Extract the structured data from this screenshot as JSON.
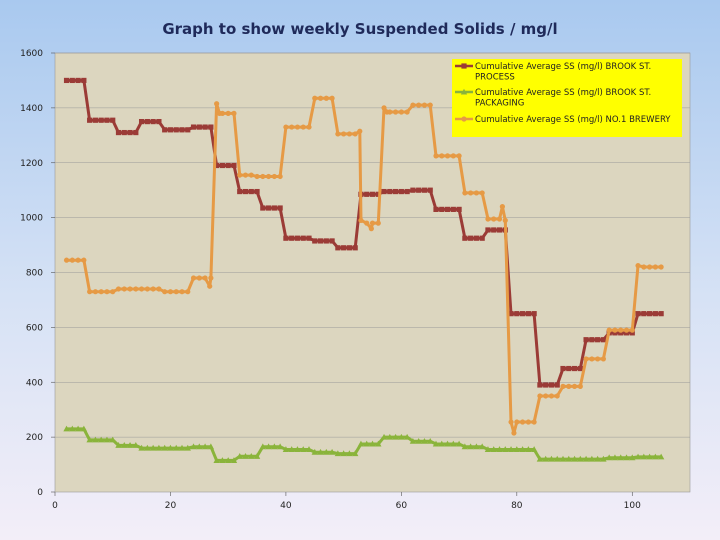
{
  "chart_data": {
    "type": "line",
    "title": "Graph to show weekly Suspended Solids / mg/l",
    "xlabel": "",
    "ylabel": "",
    "xlim": [
      0,
      110
    ],
    "ylim": [
      0,
      1600
    ],
    "xticks": [
      0,
      20,
      40,
      60,
      80,
      100
    ],
    "yticks": [
      0,
      200,
      400,
      600,
      800,
      1000,
      1200,
      1400,
      1600
    ],
    "grid": "horizontal",
    "legend_position": "top-right",
    "series": [
      {
        "name": "Cumulative Average SS (mg/l) BROOK ST. PROCESS",
        "color": "#9b3b36",
        "marker": "square",
        "points": [
          [
            2,
            1500
          ],
          [
            3,
            1500
          ],
          [
            4,
            1500
          ],
          [
            5,
            1500
          ],
          [
            6,
            1355
          ],
          [
            7,
            1355
          ],
          [
            8,
            1355
          ],
          [
            9,
            1355
          ],
          [
            10,
            1355
          ],
          [
            11,
            1310
          ],
          [
            12,
            1310
          ],
          [
            13,
            1310
          ],
          [
            14,
            1310
          ],
          [
            15,
            1350
          ],
          [
            16,
            1350
          ],
          [
            17,
            1350
          ],
          [
            18,
            1350
          ],
          [
            19,
            1320
          ],
          [
            20,
            1320
          ],
          [
            21,
            1320
          ],
          [
            22,
            1320
          ],
          [
            23,
            1320
          ],
          [
            24,
            1330
          ],
          [
            25,
            1330
          ],
          [
            26,
            1330
          ],
          [
            27,
            1330
          ],
          [
            28,
            1190
          ],
          [
            29,
            1190
          ],
          [
            30,
            1190
          ],
          [
            31,
            1190
          ],
          [
            32,
            1095
          ],
          [
            33,
            1095
          ],
          [
            34,
            1095
          ],
          [
            35,
            1095
          ],
          [
            36,
            1035
          ],
          [
            37,
            1035
          ],
          [
            38,
            1035
          ],
          [
            39,
            1035
          ],
          [
            40,
            925
          ],
          [
            41,
            925
          ],
          [
            42,
            925
          ],
          [
            43,
            925
          ],
          [
            44,
            925
          ],
          [
            45,
            915
          ],
          [
            46,
            915
          ],
          [
            47,
            915
          ],
          [
            48,
            915
          ],
          [
            49,
            890
          ],
          [
            50,
            890
          ],
          [
            51,
            890
          ],
          [
            52,
            890
          ],
          [
            53,
            1085
          ],
          [
            54,
            1085
          ],
          [
            55,
            1085
          ],
          [
            56,
            1085
          ],
          [
            57,
            1095
          ],
          [
            58,
            1095
          ],
          [
            59,
            1095
          ],
          [
            60,
            1095
          ],
          [
            61,
            1095
          ],
          [
            62,
            1100
          ],
          [
            63,
            1100
          ],
          [
            64,
            1100
          ],
          [
            65,
            1100
          ],
          [
            66,
            1030
          ],
          [
            67,
            1030
          ],
          [
            68,
            1030
          ],
          [
            69,
            1030
          ],
          [
            70,
            1030
          ],
          [
            71,
            925
          ],
          [
            72,
            925
          ],
          [
            73,
            925
          ],
          [
            74,
            925
          ],
          [
            75,
            955
          ],
          [
            76,
            955
          ],
          [
            77,
            955
          ],
          [
            78,
            955
          ],
          [
            79,
            650
          ],
          [
            80,
            650
          ],
          [
            81,
            650
          ],
          [
            82,
            650
          ],
          [
            83,
            650
          ],
          [
            84,
            390
          ],
          [
            85,
            390
          ],
          [
            86,
            390
          ],
          [
            87,
            390
          ],
          [
            88,
            450
          ],
          [
            89,
            450
          ],
          [
            90,
            450
          ],
          [
            91,
            450
          ],
          [
            92,
            555
          ],
          [
            93,
            555
          ],
          [
            94,
            555
          ],
          [
            95,
            555
          ],
          [
            96,
            580
          ],
          [
            97,
            580
          ],
          [
            98,
            580
          ],
          [
            99,
            580
          ],
          [
            100,
            580
          ],
          [
            101,
            650
          ],
          [
            102,
            650
          ],
          [
            103,
            650
          ],
          [
            104,
            650
          ],
          [
            105,
            650
          ]
        ]
      },
      {
        "name": "Cumulative Average SS (mg/l) BROOK ST. PACKAGING",
        "color": "#8ab43b",
        "marker": "triangle",
        "points": [
          [
            2,
            230
          ],
          [
            3,
            230
          ],
          [
            4,
            230
          ],
          [
            5,
            230
          ],
          [
            6,
            190
          ],
          [
            7,
            190
          ],
          [
            8,
            190
          ],
          [
            9,
            190
          ],
          [
            10,
            190
          ],
          [
            11,
            170
          ],
          [
            12,
            170
          ],
          [
            13,
            170
          ],
          [
            14,
            170
          ],
          [
            15,
            160
          ],
          [
            16,
            160
          ],
          [
            17,
            160
          ],
          [
            18,
            160
          ],
          [
            19,
            160
          ],
          [
            20,
            160
          ],
          [
            21,
            160
          ],
          [
            22,
            160
          ],
          [
            23,
            160
          ],
          [
            24,
            165
          ],
          [
            25,
            165
          ],
          [
            26,
            165
          ],
          [
            27,
            165
          ],
          [
            28,
            115
          ],
          [
            29,
            115
          ],
          [
            30,
            115
          ],
          [
            31,
            115
          ],
          [
            32,
            130
          ],
          [
            33,
            130
          ],
          [
            34,
            130
          ],
          [
            35,
            130
          ],
          [
            36,
            165
          ],
          [
            37,
            165
          ],
          [
            38,
            165
          ],
          [
            39,
            165
          ],
          [
            40,
            155
          ],
          [
            41,
            155
          ],
          [
            42,
            155
          ],
          [
            43,
            155
          ],
          [
            44,
            155
          ],
          [
            45,
            145
          ],
          [
            46,
            145
          ],
          [
            47,
            145
          ],
          [
            48,
            145
          ],
          [
            49,
            140
          ],
          [
            50,
            140
          ],
          [
            51,
            140
          ],
          [
            52,
            140
          ],
          [
            53,
            175
          ],
          [
            54,
            175
          ],
          [
            55,
            175
          ],
          [
            56,
            175
          ],
          [
            57,
            200
          ],
          [
            58,
            200
          ],
          [
            59,
            200
          ],
          [
            60,
            200
          ],
          [
            61,
            200
          ],
          [
            62,
            185
          ],
          [
            63,
            185
          ],
          [
            64,
            185
          ],
          [
            65,
            185
          ],
          [
            66,
            175
          ],
          [
            67,
            175
          ],
          [
            68,
            175
          ],
          [
            69,
            175
          ],
          [
            70,
            175
          ],
          [
            71,
            165
          ],
          [
            72,
            165
          ],
          [
            73,
            165
          ],
          [
            74,
            165
          ],
          [
            75,
            155
          ],
          [
            76,
            155
          ],
          [
            77,
            155
          ],
          [
            78,
            155
          ],
          [
            79,
            155
          ],
          [
            80,
            155
          ],
          [
            81,
            155
          ],
          [
            82,
            155
          ],
          [
            83,
            155
          ],
          [
            84,
            120
          ],
          [
            85,
            120
          ],
          [
            86,
            120
          ],
          [
            87,
            120
          ],
          [
            88,
            120
          ],
          [
            89,
            120
          ],
          [
            90,
            120
          ],
          [
            91,
            120
          ],
          [
            92,
            120
          ],
          [
            93,
            120
          ],
          [
            94,
            120
          ],
          [
            95,
            120
          ],
          [
            96,
            125
          ],
          [
            97,
            125
          ],
          [
            98,
            125
          ],
          [
            99,
            125
          ],
          [
            100,
            125
          ],
          [
            101,
            128
          ],
          [
            102,
            128
          ],
          [
            103,
            128
          ],
          [
            104,
            128
          ],
          [
            105,
            128
          ]
        ]
      },
      {
        "name": "Cumulative Average SS (mg/l) NO.1 BREWERY",
        "color": "#e69a45",
        "marker": "circle",
        "points": [
          [
            2,
            845
          ],
          [
            3,
            845
          ],
          [
            4,
            845
          ],
          [
            5,
            845
          ],
          [
            6,
            730
          ],
          [
            7,
            730
          ],
          [
            8,
            730
          ],
          [
            9,
            730
          ],
          [
            10,
            730
          ],
          [
            11,
            740
          ],
          [
            12,
            740
          ],
          [
            13,
            740
          ],
          [
            14,
            740
          ],
          [
            15,
            740
          ],
          [
            16,
            740
          ],
          [
            17,
            740
          ],
          [
            18,
            740
          ],
          [
            19,
            730
          ],
          [
            20,
            730
          ],
          [
            21,
            730
          ],
          [
            22,
            730
          ],
          [
            23,
            730
          ],
          [
            24,
            780
          ],
          [
            25,
            780
          ],
          [
            26,
            780
          ],
          [
            26.8,
            750
          ],
          [
            27,
            780
          ],
          [
            28,
            1415
          ],
          [
            28.5,
            1380
          ],
          [
            29,
            1380
          ],
          [
            30,
            1380
          ],
          [
            31,
            1380
          ],
          [
            32,
            1155
          ],
          [
            33,
            1155
          ],
          [
            34,
            1155
          ],
          [
            35,
            1150
          ],
          [
            36,
            1150
          ],
          [
            37,
            1150
          ],
          [
            38,
            1150
          ],
          [
            39,
            1150
          ],
          [
            40,
            1330
          ],
          [
            41,
            1330
          ],
          [
            42,
            1330
          ],
          [
            43,
            1330
          ],
          [
            44,
            1330
          ],
          [
            45,
            1435
          ],
          [
            46,
            1435
          ],
          [
            47,
            1435
          ],
          [
            48,
            1435
          ],
          [
            49,
            1305
          ],
          [
            50,
            1305
          ],
          [
            51,
            1305
          ],
          [
            52,
            1305
          ],
          [
            52.8,
            1315
          ],
          [
            53,
            990
          ],
          [
            54,
            980
          ],
          [
            54.8,
            960
          ],
          [
            55,
            980
          ],
          [
            56,
            980
          ],
          [
            57,
            1400
          ],
          [
            57.5,
            1385
          ],
          [
            58,
            1385
          ],
          [
            59,
            1385
          ],
          [
            60,
            1385
          ],
          [
            61,
            1385
          ],
          [
            62,
            1410
          ],
          [
            63,
            1410
          ],
          [
            64,
            1410
          ],
          [
            65,
            1410
          ],
          [
            66,
            1225
          ],
          [
            67,
            1225
          ],
          [
            68,
            1225
          ],
          [
            69,
            1225
          ],
          [
            70,
            1225
          ],
          [
            71,
            1090
          ],
          [
            72,
            1090
          ],
          [
            73,
            1090
          ],
          [
            74,
            1090
          ],
          [
            75,
            995
          ],
          [
            76,
            995
          ],
          [
            77,
            995
          ],
          [
            77.5,
            1040
          ],
          [
            78,
            990
          ],
          [
            79,
            255
          ],
          [
            79.5,
            215
          ],
          [
            80,
            255
          ],
          [
            81,
            255
          ],
          [
            82,
            255
          ],
          [
            83,
            255
          ],
          [
            84,
            350
          ],
          [
            85,
            350
          ],
          [
            86,
            350
          ],
          [
            87,
            350
          ],
          [
            88,
            385
          ],
          [
            89,
            385
          ],
          [
            90,
            385
          ],
          [
            91,
            385
          ],
          [
            92,
            485
          ],
          [
            93,
            485
          ],
          [
            94,
            485
          ],
          [
            95,
            485
          ],
          [
            96,
            590
          ],
          [
            97,
            590
          ],
          [
            98,
            590
          ],
          [
            99,
            590
          ],
          [
            100,
            590
          ],
          [
            101,
            825
          ],
          [
            102,
            820
          ],
          [
            103,
            820
          ],
          [
            104,
            820
          ],
          [
            105,
            820
          ]
        ]
      }
    ]
  }
}
